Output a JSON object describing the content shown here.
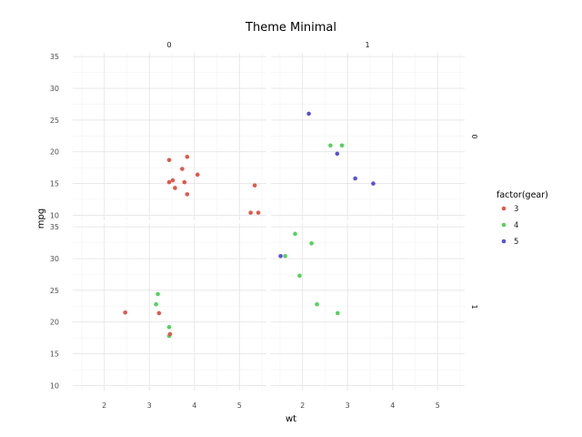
{
  "chart_data": {
    "type": "scatter",
    "title": "Theme Minimal",
    "xlabel": "wt",
    "ylabel": "mpg",
    "xlim": [
      1.3,
      5.6
    ],
    "ylim": [
      9.2,
      35.6
    ],
    "x_ticks": [
      2,
      3,
      4,
      5
    ],
    "y_ticks": [
      10,
      15,
      20,
      25,
      30,
      35
    ],
    "grid": true,
    "facet_cols": [
      "0",
      "1"
    ],
    "facet_rows": [
      "0",
      "1"
    ],
    "legend": {
      "title": "factor(gear)",
      "position": "right",
      "entries": [
        {
          "label": "3",
          "color": "#e2584c"
        },
        {
          "label": "4",
          "color": "#55d25c"
        },
        {
          "label": "5",
          "color": "#5b4fd9"
        }
      ]
    },
    "panels": [
      {
        "row": "0",
        "col": "0",
        "points": [
          {
            "gear": "3",
            "x": 3.44,
            "y": 18.7
          },
          {
            "gear": "3",
            "x": 3.84,
            "y": 19.2
          },
          {
            "gear": "3",
            "x": 3.73,
            "y": 17.3
          },
          {
            "gear": "3",
            "x": 4.07,
            "y": 16.4
          },
          {
            "gear": "3",
            "x": 3.52,
            "y": 15.5
          },
          {
            "gear": "3",
            "x": 3.44,
            "y": 15.2
          },
          {
            "gear": "3",
            "x": 3.78,
            "y": 15.2
          },
          {
            "gear": "3",
            "x": 3.57,
            "y": 14.3
          },
          {
            "gear": "3",
            "x": 3.84,
            "y": 13.3
          },
          {
            "gear": "3",
            "x": 5.34,
            "y": 14.7
          },
          {
            "gear": "3",
            "x": 5.25,
            "y": 10.4
          },
          {
            "gear": "3",
            "x": 5.42,
            "y": 10.4
          }
        ]
      },
      {
        "row": "0",
        "col": "1",
        "points": [
          {
            "gear": "5",
            "x": 2.14,
            "y": 26.0
          },
          {
            "gear": "4",
            "x": 2.62,
            "y": 21.0
          },
          {
            "gear": "4",
            "x": 2.875,
            "y": 21.0
          },
          {
            "gear": "5",
            "x": 2.77,
            "y": 19.7
          },
          {
            "gear": "5",
            "x": 3.17,
            "y": 15.8
          },
          {
            "gear": "5",
            "x": 3.57,
            "y": 15.0
          }
        ]
      },
      {
        "row": "1",
        "col": "0",
        "points": [
          {
            "gear": "3",
            "x": 2.465,
            "y": 21.5
          },
          {
            "gear": "3",
            "x": 3.215,
            "y": 21.4
          },
          {
            "gear": "4",
            "x": 3.19,
            "y": 24.4
          },
          {
            "gear": "4",
            "x": 3.15,
            "y": 22.8
          },
          {
            "gear": "4",
            "x": 3.44,
            "y": 19.2
          },
          {
            "gear": "4",
            "x": 3.44,
            "y": 17.8
          },
          {
            "gear": "3",
            "x": 3.46,
            "y": 18.1
          }
        ]
      },
      {
        "row": "1",
        "col": "1",
        "points": [
          {
            "gear": "4",
            "x": 1.835,
            "y": 33.9
          },
          {
            "gear": "4",
            "x": 2.2,
            "y": 32.4
          },
          {
            "gear": "5",
            "x": 1.513,
            "y": 30.4
          },
          {
            "gear": "4",
            "x": 1.615,
            "y": 30.4
          },
          {
            "gear": "4",
            "x": 1.935,
            "y": 27.3
          },
          {
            "gear": "4",
            "x": 2.32,
            "y": 22.8
          },
          {
            "gear": "4",
            "x": 2.78,
            "y": 21.4
          }
        ]
      }
    ]
  }
}
